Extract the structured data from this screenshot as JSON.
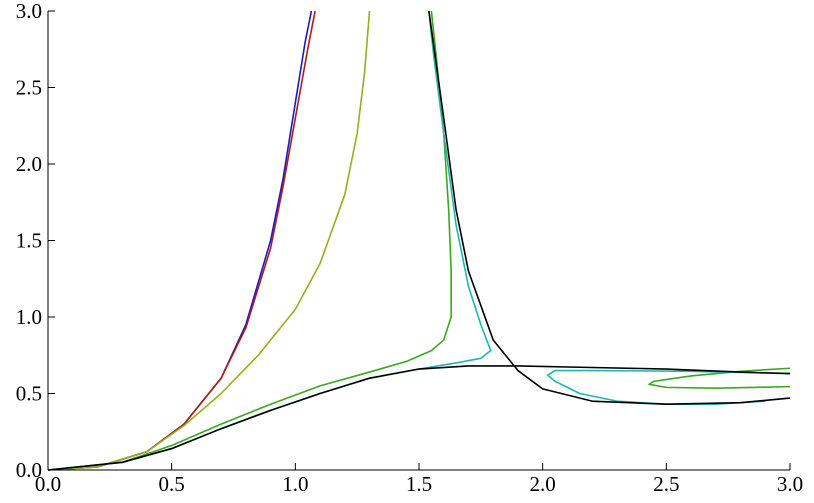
{
  "chart_data": {
    "type": "line",
    "xlim": [
      0,
      3
    ],
    "ylim": [
      0,
      3
    ],
    "xticks": [
      {
        "value": 0,
        "label": "0.0"
      },
      0.5,
      {
        "value": 1,
        "label": "1.0"
      },
      1.5,
      {
        "value": 2,
        "label": "2.0"
      },
      2.5,
      {
        "value": 3,
        "label": "3.0"
      }
    ],
    "yticks": [
      {
        "value": 0,
        "label": "0.0"
      },
      0.5,
      {
        "value": 1,
        "label": "1.0"
      },
      1.5,
      {
        "value": 2,
        "label": "2.0"
      },
      2.5,
      {
        "value": 3,
        "label": "3.0"
      }
    ],
    "series": [
      {
        "color": "#1a1ac8",
        "x": [
          0,
          0.2,
          0.4,
          0.55,
          0.7,
          0.8,
          0.9,
          0.95,
          1.0,
          1.04,
          1.065
        ],
        "values": [
          0,
          0.02,
          0.12,
          0.3,
          0.6,
          0.95,
          1.5,
          1.9,
          2.4,
          2.8,
          3.0
        ]
      },
      {
        "color": "#b01a1a",
        "x": [
          0,
          0.2,
          0.4,
          0.55,
          0.7,
          0.8,
          0.9,
          0.95,
          1.0,
          1.05,
          1.08
        ],
        "values": [
          0,
          0.02,
          0.12,
          0.3,
          0.6,
          0.93,
          1.45,
          1.85,
          2.3,
          2.75,
          3.0
        ]
      },
      {
        "color": "#9aad1c",
        "x": [
          0,
          0.2,
          0.4,
          0.55,
          0.7,
          0.85,
          1.0,
          1.1,
          1.2,
          1.25,
          1.28,
          1.3
        ],
        "values": [
          0,
          0.02,
          0.12,
          0.29,
          0.5,
          0.75,
          1.05,
          1.35,
          1.8,
          2.2,
          2.6,
          3.0
        ]
      },
      {
        "color": "#3aa81e",
        "x": [
          0,
          0.3,
          0.5,
          0.7,
          0.9,
          1.1,
          1.3,
          1.45,
          1.55,
          1.6,
          1.63,
          1.63,
          1.62,
          1.6,
          1.57,
          1.55,
          null,
          3.0,
          2.8,
          2.6,
          2.45,
          2.43,
          2.5,
          2.7,
          3.0
        ],
        "values": [
          0,
          0.05,
          0.16,
          0.3,
          0.43,
          0.55,
          0.64,
          0.71,
          0.78,
          0.85,
          1.0,
          1.3,
          1.7,
          2.2,
          2.7,
          3.0,
          null,
          0.665,
          0.645,
          0.615,
          0.58,
          0.56,
          0.54,
          0.535,
          0.545
        ]
      },
      {
        "color": "#1fb5b5",
        "x": [
          0,
          0.3,
          0.5,
          0.7,
          0.9,
          1.1,
          1.3,
          1.5,
          1.65,
          1.75,
          1.79,
          1.75,
          1.7,
          1.65,
          1.6,
          1.56,
          1.54,
          null,
          3.0,
          2.6,
          2.2,
          2.05,
          2.02,
          2.05,
          2.15,
          2.3,
          2.5,
          2.7,
          2.9
        ],
        "values": [
          0,
          0.05,
          0.14,
          0.27,
          0.39,
          0.5,
          0.6,
          0.66,
          0.7,
          0.73,
          0.78,
          0.95,
          1.2,
          1.6,
          2.2,
          2.7,
          3.0,
          null,
          0.63,
          0.645,
          0.65,
          0.65,
          0.62,
          0.58,
          0.5,
          0.45,
          0.43,
          0.43,
          0.45
        ]
      },
      {
        "color": "#000000",
        "x": [
          0,
          0.3,
          0.5,
          0.7,
          0.9,
          1.1,
          1.3,
          1.5,
          1.7,
          1.9,
          2.2,
          2.5,
          2.8,
          3.0,
          null,
          1.54,
          1.6,
          1.65,
          1.7,
          1.8,
          1.9,
          2.0,
          2.2,
          2.5,
          2.8,
          3.0
        ],
        "values": [
          0,
          0.05,
          0.14,
          0.27,
          0.39,
          0.5,
          0.6,
          0.66,
          0.68,
          0.68,
          0.67,
          0.66,
          0.64,
          0.63,
          null,
          3.0,
          2.3,
          1.7,
          1.3,
          0.85,
          0.65,
          0.53,
          0.45,
          0.43,
          0.44,
          0.47
        ]
      }
    ]
  }
}
